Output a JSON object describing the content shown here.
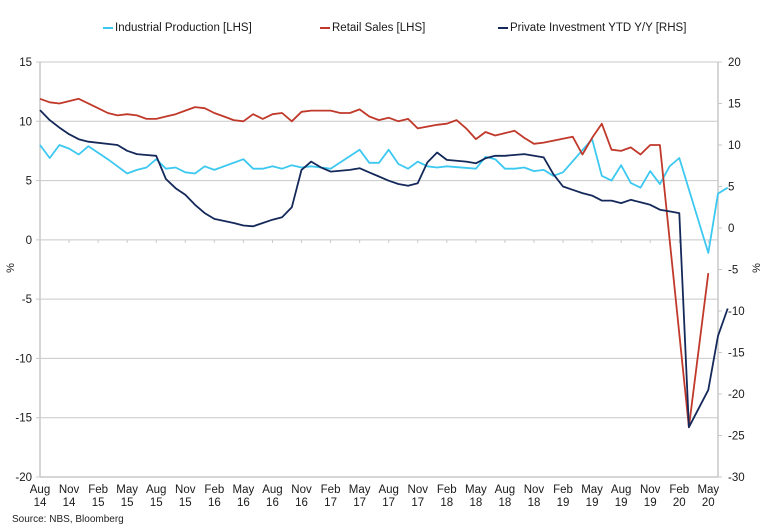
{
  "chart_data": {
    "type": "line",
    "title": "",
    "source": "Source: NBS, Bloomberg",
    "legend_position": "top",
    "grid": true,
    "left_axis": {
      "label": "%",
      "range": [
        -20,
        15
      ],
      "ticks": [
        15,
        10,
        5,
        0,
        -5,
        -10,
        -15,
        -20
      ]
    },
    "right_axis": {
      "label": "%",
      "range": [
        -30,
        20
      ],
      "ticks": [
        20,
        15,
        10,
        5,
        0,
        -5,
        -10,
        -15,
        -20,
        -25,
        -30
      ]
    },
    "x_tick_labels": [
      [
        "Aug",
        "14"
      ],
      [
        "Nov",
        "14"
      ],
      [
        "Feb",
        "15"
      ],
      [
        "May",
        "15"
      ],
      [
        "Aug",
        "15"
      ],
      [
        "Nov",
        "15"
      ],
      [
        "Feb",
        "16"
      ],
      [
        "May",
        "16"
      ],
      [
        "Aug",
        "16"
      ],
      [
        "Nov",
        "16"
      ],
      [
        "Feb",
        "17"
      ],
      [
        "May",
        "17"
      ],
      [
        "Aug",
        "17"
      ],
      [
        "Nov",
        "17"
      ],
      [
        "Feb",
        "18"
      ],
      [
        "May",
        "18"
      ],
      [
        "Aug",
        "18"
      ],
      [
        "Nov",
        "18"
      ],
      [
        "Feb",
        "19"
      ],
      [
        "May",
        "19"
      ],
      [
        "Aug",
        "19"
      ],
      [
        "Nov",
        "19"
      ],
      [
        "Feb",
        "20"
      ],
      [
        "May",
        "20"
      ]
    ],
    "x_start": "2014-08",
    "x_end": "2020-05",
    "series": [
      {
        "name": "Industrial Production [LHS]",
        "axis": "left",
        "color": "#3cc8f0",
        "points": [
          [
            0,
            8.0
          ],
          [
            1,
            6.9
          ],
          [
            2,
            8.0
          ],
          [
            3,
            7.7
          ],
          [
            4,
            7.2
          ],
          [
            5,
            7.9
          ],
          [
            7,
            6.8
          ],
          [
            9,
            5.6
          ],
          [
            10,
            5.9
          ],
          [
            11,
            6.1
          ],
          [
            12,
            6.8
          ],
          [
            13,
            6.0
          ],
          [
            14,
            6.1
          ],
          [
            15,
            5.7
          ],
          [
            16,
            5.6
          ],
          [
            17,
            6.2
          ],
          [
            18,
            5.9
          ],
          [
            21,
            6.8
          ],
          [
            22,
            6.0
          ],
          [
            23,
            6.0
          ],
          [
            24,
            6.2
          ],
          [
            25,
            6.0
          ],
          [
            26,
            6.3
          ],
          [
            27,
            6.1
          ],
          [
            28,
            6.2
          ],
          [
            29,
            6.1
          ],
          [
            30,
            6.0
          ],
          [
            33,
            7.6
          ],
          [
            34,
            6.5
          ],
          [
            35,
            6.5
          ],
          [
            36,
            7.6
          ],
          [
            37,
            6.4
          ],
          [
            38,
            6.0
          ],
          [
            39,
            6.6
          ],
          [
            40,
            6.2
          ],
          [
            41,
            6.1
          ],
          [
            42,
            6.2
          ],
          [
            45,
            6.0
          ],
          [
            46,
            7.0
          ],
          [
            47,
            6.8
          ],
          [
            48,
            6.0
          ],
          [
            49,
            6.0
          ],
          [
            50,
            6.1
          ],
          [
            51,
            5.8
          ],
          [
            52,
            5.9
          ],
          [
            53,
            5.4
          ],
          [
            54,
            5.7
          ],
          [
            57,
            8.5
          ],
          [
            58,
            5.4
          ],
          [
            59,
            5.0
          ],
          [
            60,
            6.3
          ],
          [
            61,
            4.8
          ],
          [
            62,
            4.4
          ],
          [
            63,
            5.8
          ],
          [
            64,
            4.7
          ],
          [
            65,
            6.2
          ],
          [
            66,
            6.9
          ],
          [
            69,
            -1.1
          ],
          [
            70,
            3.9
          ],
          [
            71,
            4.4
          ]
        ]
      },
      {
        "name": "Retail Sales [LHS]",
        "axis": "left",
        "color": "#c0392b",
        "points": [
          [
            0,
            11.9
          ],
          [
            1,
            11.6
          ],
          [
            2,
            11.5
          ],
          [
            3,
            11.7
          ],
          [
            4,
            11.9
          ],
          [
            6,
            11.1
          ],
          [
            7,
            10.7
          ],
          [
            8,
            10.5
          ],
          [
            9,
            10.6
          ],
          [
            10,
            10.5
          ],
          [
            11,
            10.2
          ],
          [
            12,
            10.2
          ],
          [
            13,
            10.4
          ],
          [
            14,
            10.6
          ],
          [
            15,
            10.9
          ],
          [
            16,
            11.2
          ],
          [
            17,
            11.1
          ],
          [
            18,
            10.7
          ],
          [
            19,
            10.4
          ],
          [
            20,
            10.1
          ],
          [
            21,
            10.0
          ],
          [
            22,
            10.6
          ],
          [
            23,
            10.2
          ],
          [
            24,
            10.6
          ],
          [
            25,
            10.7
          ],
          [
            26,
            10.0
          ],
          [
            27,
            10.8
          ],
          [
            28,
            10.9
          ],
          [
            30,
            10.9
          ],
          [
            31,
            10.7
          ],
          [
            32,
            10.7
          ],
          [
            33,
            11.0
          ],
          [
            34,
            10.4
          ],
          [
            35,
            10.1
          ],
          [
            36,
            10.3
          ],
          [
            37,
            10.0
          ],
          [
            38,
            10.2
          ],
          [
            39,
            9.4
          ],
          [
            41,
            9.7
          ],
          [
            42,
            9.8
          ],
          [
            43,
            10.1
          ],
          [
            44,
            9.4
          ],
          [
            45,
            8.5
          ],
          [
            46,
            9.1
          ],
          [
            47,
            8.8
          ],
          [
            48,
            9.0
          ],
          [
            49,
            9.2
          ],
          [
            50,
            8.6
          ],
          [
            51,
            8.1
          ],
          [
            52,
            8.2
          ],
          [
            55,
            8.7
          ],
          [
            56,
            7.2
          ],
          [
            57,
            8.6
          ],
          [
            58,
            9.8
          ],
          [
            59,
            7.6
          ],
          [
            60,
            7.5
          ],
          [
            61,
            7.8
          ],
          [
            62,
            7.2
          ],
          [
            63,
            8.0
          ],
          [
            64,
            8.0
          ],
          [
            67,
            -15.8
          ],
          [
            69,
            -2.8
          ]
        ]
      },
      {
        "name": "Private Investment YTD Y/Y [RHS]",
        "axis": "right",
        "color": "#14295a",
        "points": [
          [
            0,
            14.2
          ],
          [
            1,
            13.0
          ],
          [
            2,
            12.1
          ],
          [
            3,
            11.3
          ],
          [
            4,
            10.7
          ],
          [
            5,
            10.4
          ],
          [
            8,
            10.0
          ],
          [
            9,
            9.3
          ],
          [
            10,
            8.9
          ],
          [
            11,
            8.8
          ],
          [
            12,
            8.7
          ],
          [
            13,
            5.9
          ],
          [
            14,
            4.8
          ],
          [
            15,
            4.0
          ],
          [
            16,
            2.8
          ],
          [
            17,
            1.8
          ],
          [
            18,
            1.1
          ],
          [
            20,
            0.6
          ],
          [
            21,
            0.3
          ],
          [
            22,
            0.2
          ],
          [
            24,
            1.0
          ],
          [
            25,
            1.3
          ],
          [
            26,
            2.5
          ],
          [
            27,
            7.0
          ],
          [
            28,
            8.0
          ],
          [
            29,
            7.3
          ],
          [
            30,
            6.8
          ],
          [
            32,
            7.0
          ],
          [
            33,
            7.2
          ],
          [
            34,
            6.7
          ],
          [
            35,
            6.2
          ],
          [
            36,
            5.7
          ],
          [
            37,
            5.3
          ],
          [
            38,
            5.1
          ],
          [
            39,
            5.4
          ],
          [
            40,
            7.9
          ],
          [
            41,
            9.1
          ],
          [
            42,
            8.2
          ],
          [
            44,
            8.0
          ],
          [
            45,
            7.8
          ],
          [
            46,
            8.4
          ],
          [
            47,
            8.7
          ],
          [
            48,
            8.7
          ],
          [
            50,
            8.9
          ],
          [
            51,
            8.7
          ],
          [
            52,
            8.5
          ],
          [
            53,
            6.5
          ],
          [
            54,
            5.0
          ],
          [
            55,
            4.6
          ],
          [
            56,
            4.2
          ],
          [
            57,
            3.9
          ],
          [
            58,
            3.3
          ],
          [
            59,
            3.3
          ],
          [
            60,
            3.0
          ],
          [
            61,
            3.4
          ],
          [
            62,
            3.1
          ],
          [
            63,
            2.8
          ],
          [
            64,
            2.2
          ],
          [
            65,
            2.0
          ],
          [
            66,
            1.8
          ],
          [
            67,
            -24.0
          ],
          [
            69,
            -19.5
          ],
          [
            70,
            -13.0
          ],
          [
            71,
            -9.7
          ]
        ]
      }
    ]
  }
}
